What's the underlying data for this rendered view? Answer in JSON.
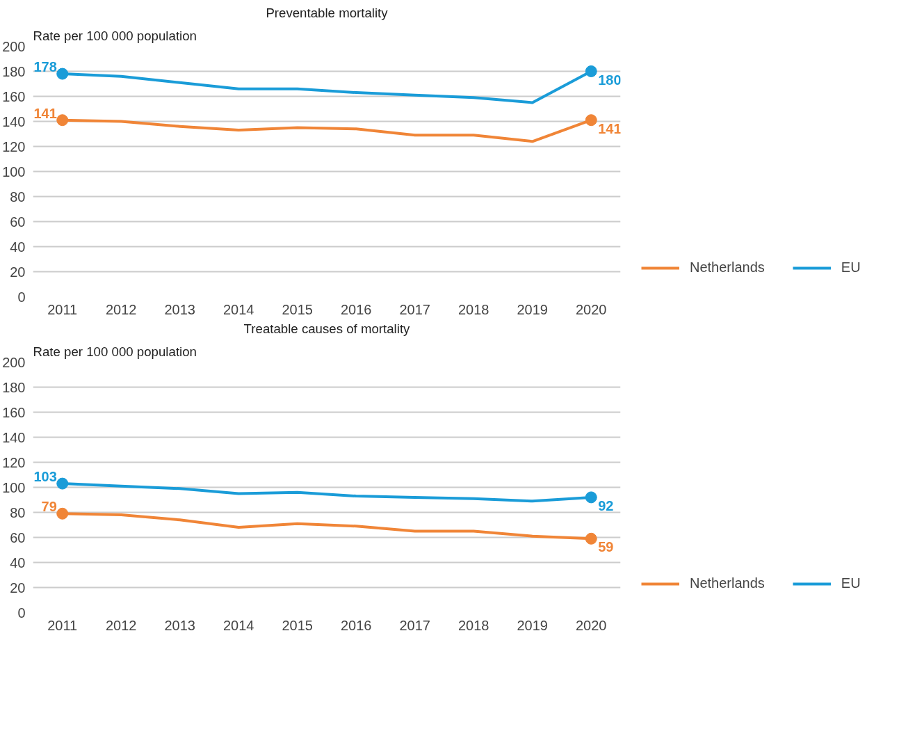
{
  "chart_data": [
    {
      "type": "line",
      "title": "Preventable mortality",
      "ylabel": "Rate per 100 000 population",
      "categories": [
        "2011",
        "2012",
        "2013",
        "2014",
        "2015",
        "2016",
        "2017",
        "2018",
        "2019",
        "2020"
      ],
      "ylim": [
        0,
        200
      ],
      "yticks": [
        0,
        20,
        40,
        60,
        80,
        100,
        120,
        140,
        160,
        180,
        200
      ],
      "grid": "y",
      "legend": "bottom right",
      "series": [
        {
          "name": "Netherlands",
          "color": "#f08537",
          "values": [
            141,
            140,
            136,
            133,
            135,
            134,
            129,
            129,
            124,
            141
          ],
          "value_labels": [
            "141",
            null,
            null,
            null,
            null,
            null,
            null,
            null,
            null,
            "141"
          ]
        },
        {
          "name": "EU",
          "color": "#1a9cd8",
          "values": [
            178,
            176,
            171,
            166,
            166,
            163,
            161,
            159,
            155,
            180
          ],
          "value_labels": [
            "178",
            null,
            null,
            null,
            null,
            null,
            null,
            null,
            null,
            "180"
          ]
        }
      ]
    },
    {
      "type": "line",
      "title": "Treatable causes of mortality",
      "ylabel": "Rate per 100 000 population",
      "categories": [
        "2011",
        "2012",
        "2013",
        "2014",
        "2015",
        "2016",
        "2017",
        "2018",
        "2019",
        "2020"
      ],
      "ylim": [
        0,
        200
      ],
      "yticks": [
        0,
        20,
        40,
        60,
        80,
        100,
        120,
        140,
        160,
        180,
        200
      ],
      "grid": "y",
      "legend": "bottom right",
      "series": [
        {
          "name": "Netherlands",
          "color": "#f08537",
          "values": [
            79,
            78,
            74,
            68,
            71,
            69,
            65,
            65,
            61,
            59
          ],
          "value_labels": [
            "79",
            null,
            null,
            null,
            null,
            null,
            null,
            null,
            null,
            "59"
          ]
        },
        {
          "name": "EU",
          "color": "#1a9cd8",
          "values": [
            103,
            101,
            99,
            95,
            96,
            93,
            92,
            91,
            89,
            92
          ],
          "value_labels": [
            "103",
            null,
            null,
            null,
            null,
            null,
            null,
            null,
            null,
            "92"
          ]
        }
      ]
    }
  ]
}
